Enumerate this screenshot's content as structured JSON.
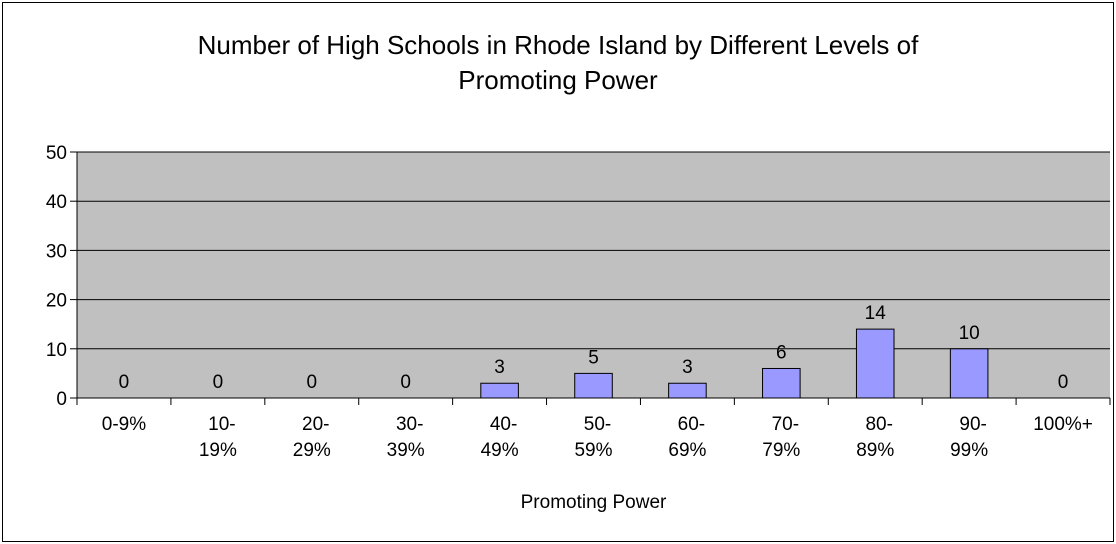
{
  "chart_data": {
    "type": "bar",
    "title": "Number of High Schools in Rhode Island by Different Levels of\nPromoting Power",
    "xlabel": "Promoting Power",
    "ylabel": "",
    "categories": [
      "0-9%",
      "10-\n19%",
      "20-\n29%",
      "30-\n39%",
      "40-\n49%",
      "50-\n59%",
      "60-\n69%",
      "70-\n79%",
      "80-\n89%",
      "90-\n99%",
      "100%+"
    ],
    "values": [
      0,
      0,
      0,
      0,
      3,
      5,
      3,
      6,
      14,
      10,
      0
    ],
    "data_labels": [
      "0",
      "0",
      "0",
      "0",
      "3",
      "5",
      "3",
      "6",
      "14",
      "10",
      "0"
    ],
    "ylim": [
      0,
      50
    ],
    "yticks": [
      0,
      10,
      20,
      30,
      40,
      50
    ],
    "grid": true,
    "legend": "none",
    "colors": {
      "plot_background": "#c0c0c0",
      "bar_fill": "#9999ff",
      "bar_stroke": "#000000",
      "gridline": "#000000"
    }
  }
}
